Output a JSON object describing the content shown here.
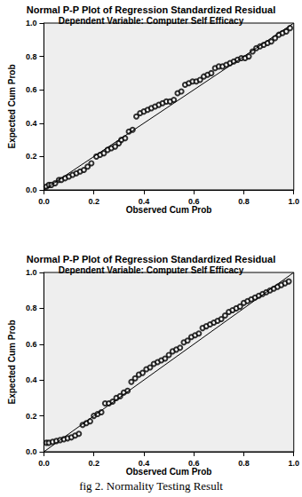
{
  "caption": "fig 2. Normality Testing Result",
  "chart_data": [
    {
      "type": "scatter",
      "title": "Normal P-P Plot of Regression Standardized Residual",
      "subtitle": "Dependent Variable: Computer Self Efficacy",
      "x_label": "Observed Cum Prob",
      "y_label": "Expected Cum Prob",
      "xlim": [
        0,
        1
      ],
      "ylim": [
        0,
        1
      ],
      "xticks": [
        {
          "value": 0,
          "label": "0.0"
        },
        0.2,
        0.4,
        0.6,
        0.8,
        {
          "value": 1,
          "label": "1.0"
        }
      ],
      "yticks": [
        {
          "value": 0,
          "label": "0.0"
        },
        0.2,
        0.4,
        0.6,
        0.8,
        {
          "value": 1,
          "label": "1.0"
        }
      ],
      "grid": false,
      "series": [
        {
          "type": "scatter",
          "marker": "circle",
          "color": "#000000",
          "x": [
            0.01,
            0.02,
            0.03,
            0.045,
            0.06,
            0.07,
            0.085,
            0.1,
            0.115,
            0.13,
            0.145,
            0.16,
            0.175,
            0.19,
            0.21,
            0.225,
            0.24,
            0.255,
            0.27,
            0.285,
            0.3,
            0.31,
            0.325,
            0.34,
            0.355,
            0.37,
            0.385,
            0.4,
            0.415,
            0.43,
            0.445,
            0.46,
            0.475,
            0.49,
            0.505,
            0.52,
            0.535,
            0.55,
            0.565,
            0.58,
            0.595,
            0.61,
            0.625,
            0.64,
            0.655,
            0.67,
            0.685,
            0.7,
            0.715,
            0.73,
            0.745,
            0.76,
            0.775,
            0.79,
            0.805,
            0.82,
            0.835,
            0.85,
            0.865,
            0.88,
            0.895,
            0.91,
            0.925,
            0.94,
            0.955,
            0.97,
            0.985
          ],
          "values": [
            0.02,
            0.03,
            0.03,
            0.04,
            0.06,
            0.06,
            0.07,
            0.08,
            0.09,
            0.1,
            0.11,
            0.12,
            0.14,
            0.16,
            0.2,
            0.21,
            0.22,
            0.24,
            0.25,
            0.26,
            0.28,
            0.3,
            0.31,
            0.35,
            0.36,
            0.44,
            0.46,
            0.47,
            0.48,
            0.49,
            0.5,
            0.51,
            0.52,
            0.53,
            0.53,
            0.54,
            0.58,
            0.59,
            0.63,
            0.64,
            0.65,
            0.65,
            0.66,
            0.68,
            0.69,
            0.7,
            0.73,
            0.74,
            0.74,
            0.75,
            0.76,
            0.77,
            0.78,
            0.79,
            0.79,
            0.8,
            0.83,
            0.85,
            0.86,
            0.87,
            0.88,
            0.89,
            0.91,
            0.93,
            0.94,
            0.95,
            0.97
          ]
        },
        {
          "type": "line",
          "color": "#000000",
          "x": [
            0,
            1
          ],
          "values": [
            0,
            1
          ]
        }
      ]
    },
    {
      "type": "scatter",
      "title": "Normal P-P Plot of Regression Standardized Residual",
      "subtitle": "Dependent Variable: Computer Self Efficacy",
      "x_label": "Observed Cum Prob",
      "y_label": "Expected Cum Prob",
      "xlim": [
        0,
        1
      ],
      "ylim": [
        0,
        1
      ],
      "xticks": [
        {
          "value": 0,
          "label": "0.0"
        },
        0.2,
        0.4,
        0.6,
        0.8,
        {
          "value": 1,
          "label": "1.0"
        }
      ],
      "yticks": [
        {
          "value": 0,
          "label": "0.0"
        },
        0.2,
        0.4,
        0.6,
        0.8,
        {
          "value": 1,
          "label": "1.0"
        }
      ],
      "grid": false,
      "series": [
        {
          "type": "scatter",
          "marker": "circle",
          "color": "#000000",
          "x": [
            0.01,
            0.02,
            0.035,
            0.05,
            0.065,
            0.08,
            0.095,
            0.11,
            0.125,
            0.14,
            0.155,
            0.17,
            0.185,
            0.2,
            0.215,
            0.23,
            0.245,
            0.26,
            0.275,
            0.29,
            0.305,
            0.32,
            0.335,
            0.35,
            0.365,
            0.38,
            0.395,
            0.41,
            0.425,
            0.44,
            0.455,
            0.47,
            0.485,
            0.5,
            0.515,
            0.53,
            0.545,
            0.56,
            0.575,
            0.59,
            0.605,
            0.62,
            0.635,
            0.65,
            0.665,
            0.68,
            0.695,
            0.71,
            0.725,
            0.74,
            0.755,
            0.77,
            0.785,
            0.8,
            0.815,
            0.83,
            0.845,
            0.86,
            0.875,
            0.89,
            0.905,
            0.92,
            0.935,
            0.95,
            0.965,
            0.98
          ],
          "values": [
            0.05,
            0.05,
            0.055,
            0.06,
            0.065,
            0.07,
            0.075,
            0.08,
            0.09,
            0.1,
            0.15,
            0.16,
            0.17,
            0.2,
            0.21,
            0.22,
            0.27,
            0.27,
            0.28,
            0.3,
            0.31,
            0.33,
            0.34,
            0.39,
            0.41,
            0.43,
            0.44,
            0.46,
            0.47,
            0.49,
            0.5,
            0.51,
            0.52,
            0.54,
            0.56,
            0.57,
            0.58,
            0.61,
            0.62,
            0.64,
            0.65,
            0.66,
            0.69,
            0.7,
            0.71,
            0.72,
            0.73,
            0.74,
            0.76,
            0.78,
            0.79,
            0.8,
            0.81,
            0.83,
            0.84,
            0.85,
            0.86,
            0.87,
            0.88,
            0.89,
            0.9,
            0.91,
            0.92,
            0.93,
            0.94,
            0.95
          ]
        },
        {
          "type": "line",
          "color": "#000000",
          "x": [
            0,
            1
          ],
          "values": [
            0,
            1
          ]
        }
      ]
    }
  ]
}
